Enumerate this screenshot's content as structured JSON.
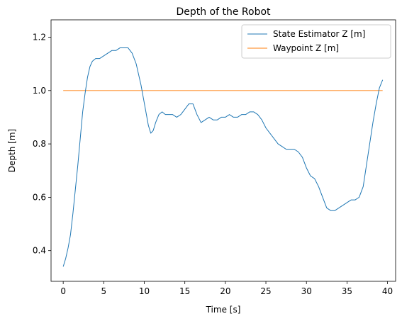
{
  "chart_data": {
    "type": "line",
    "title": "Depth of the Robot",
    "xlabel": "Time [s]",
    "ylabel": "Depth [m]",
    "xlim": [
      -1.5,
      41.0
    ],
    "ylim": [
      0.285,
      1.265
    ],
    "xticks": [
      0,
      5,
      10,
      15,
      20,
      25,
      30,
      35,
      40
    ],
    "yticks": [
      0.4,
      0.6,
      0.8,
      1.0,
      1.2
    ],
    "xtick_labels": [
      "0",
      "5",
      "10",
      "15",
      "20",
      "25",
      "30",
      "35",
      "40"
    ],
    "ytick_labels": [
      "0.4",
      "0.6",
      "0.8",
      "1.0",
      "1.2"
    ],
    "grid": false,
    "legend_position": "top-right",
    "series": [
      {
        "name": "State Estimator Z [m]",
        "color": "#1f77b4",
        "x": [
          0.0,
          0.3,
          0.6,
          0.9,
          1.2,
          1.5,
          1.8,
          2.1,
          2.4,
          2.7,
          3.0,
          3.3,
          3.6,
          4.0,
          4.5,
          5.0,
          5.5,
          6.0,
          6.5,
          7.0,
          7.5,
          8.0,
          8.5,
          9.0,
          9.3,
          9.6,
          9.9,
          10.2,
          10.5,
          10.8,
          11.1,
          11.4,
          11.8,
          12.2,
          12.6,
          13.0,
          13.5,
          14.0,
          14.5,
          15.0,
          15.5,
          16.0,
          16.5,
          17.0,
          17.5,
          18.0,
          18.5,
          19.0,
          19.5,
          20.0,
          20.5,
          21.0,
          21.5,
          22.0,
          22.5,
          23.0,
          23.5,
          24.0,
          24.5,
          25.0,
          25.5,
          26.0,
          26.5,
          27.0,
          27.5,
          28.0,
          28.5,
          29.0,
          29.5,
          30.0,
          30.5,
          31.0,
          31.5,
          32.0,
          32.5,
          33.0,
          33.5,
          34.0,
          34.5,
          35.0,
          35.5,
          36.0,
          36.5,
          37.0,
          37.4,
          37.8,
          38.2,
          38.6,
          39.0,
          39.4
        ],
        "y": [
          0.34,
          0.37,
          0.41,
          0.46,
          0.54,
          0.63,
          0.72,
          0.82,
          0.92,
          0.99,
          1.05,
          1.09,
          1.11,
          1.12,
          1.12,
          1.13,
          1.14,
          1.15,
          1.15,
          1.16,
          1.16,
          1.16,
          1.14,
          1.1,
          1.06,
          1.02,
          0.97,
          0.92,
          0.87,
          0.84,
          0.85,
          0.88,
          0.91,
          0.92,
          0.91,
          0.91,
          0.91,
          0.9,
          0.91,
          0.93,
          0.95,
          0.95,
          0.91,
          0.88,
          0.89,
          0.9,
          0.89,
          0.89,
          0.9,
          0.9,
          0.91,
          0.9,
          0.9,
          0.91,
          0.91,
          0.92,
          0.92,
          0.91,
          0.89,
          0.86,
          0.84,
          0.82,
          0.8,
          0.79,
          0.78,
          0.78,
          0.78,
          0.77,
          0.75,
          0.71,
          0.68,
          0.67,
          0.64,
          0.6,
          0.56,
          0.55,
          0.55,
          0.56,
          0.57,
          0.58,
          0.59,
          0.59,
          0.6,
          0.64,
          0.72,
          0.8,
          0.88,
          0.95,
          1.01,
          1.04
        ]
      },
      {
        "name": "Waypoint Z [m]",
        "color": "#ff7f0e",
        "x": [
          0.0,
          39.4
        ],
        "y": [
          1.0,
          1.0
        ]
      }
    ]
  }
}
